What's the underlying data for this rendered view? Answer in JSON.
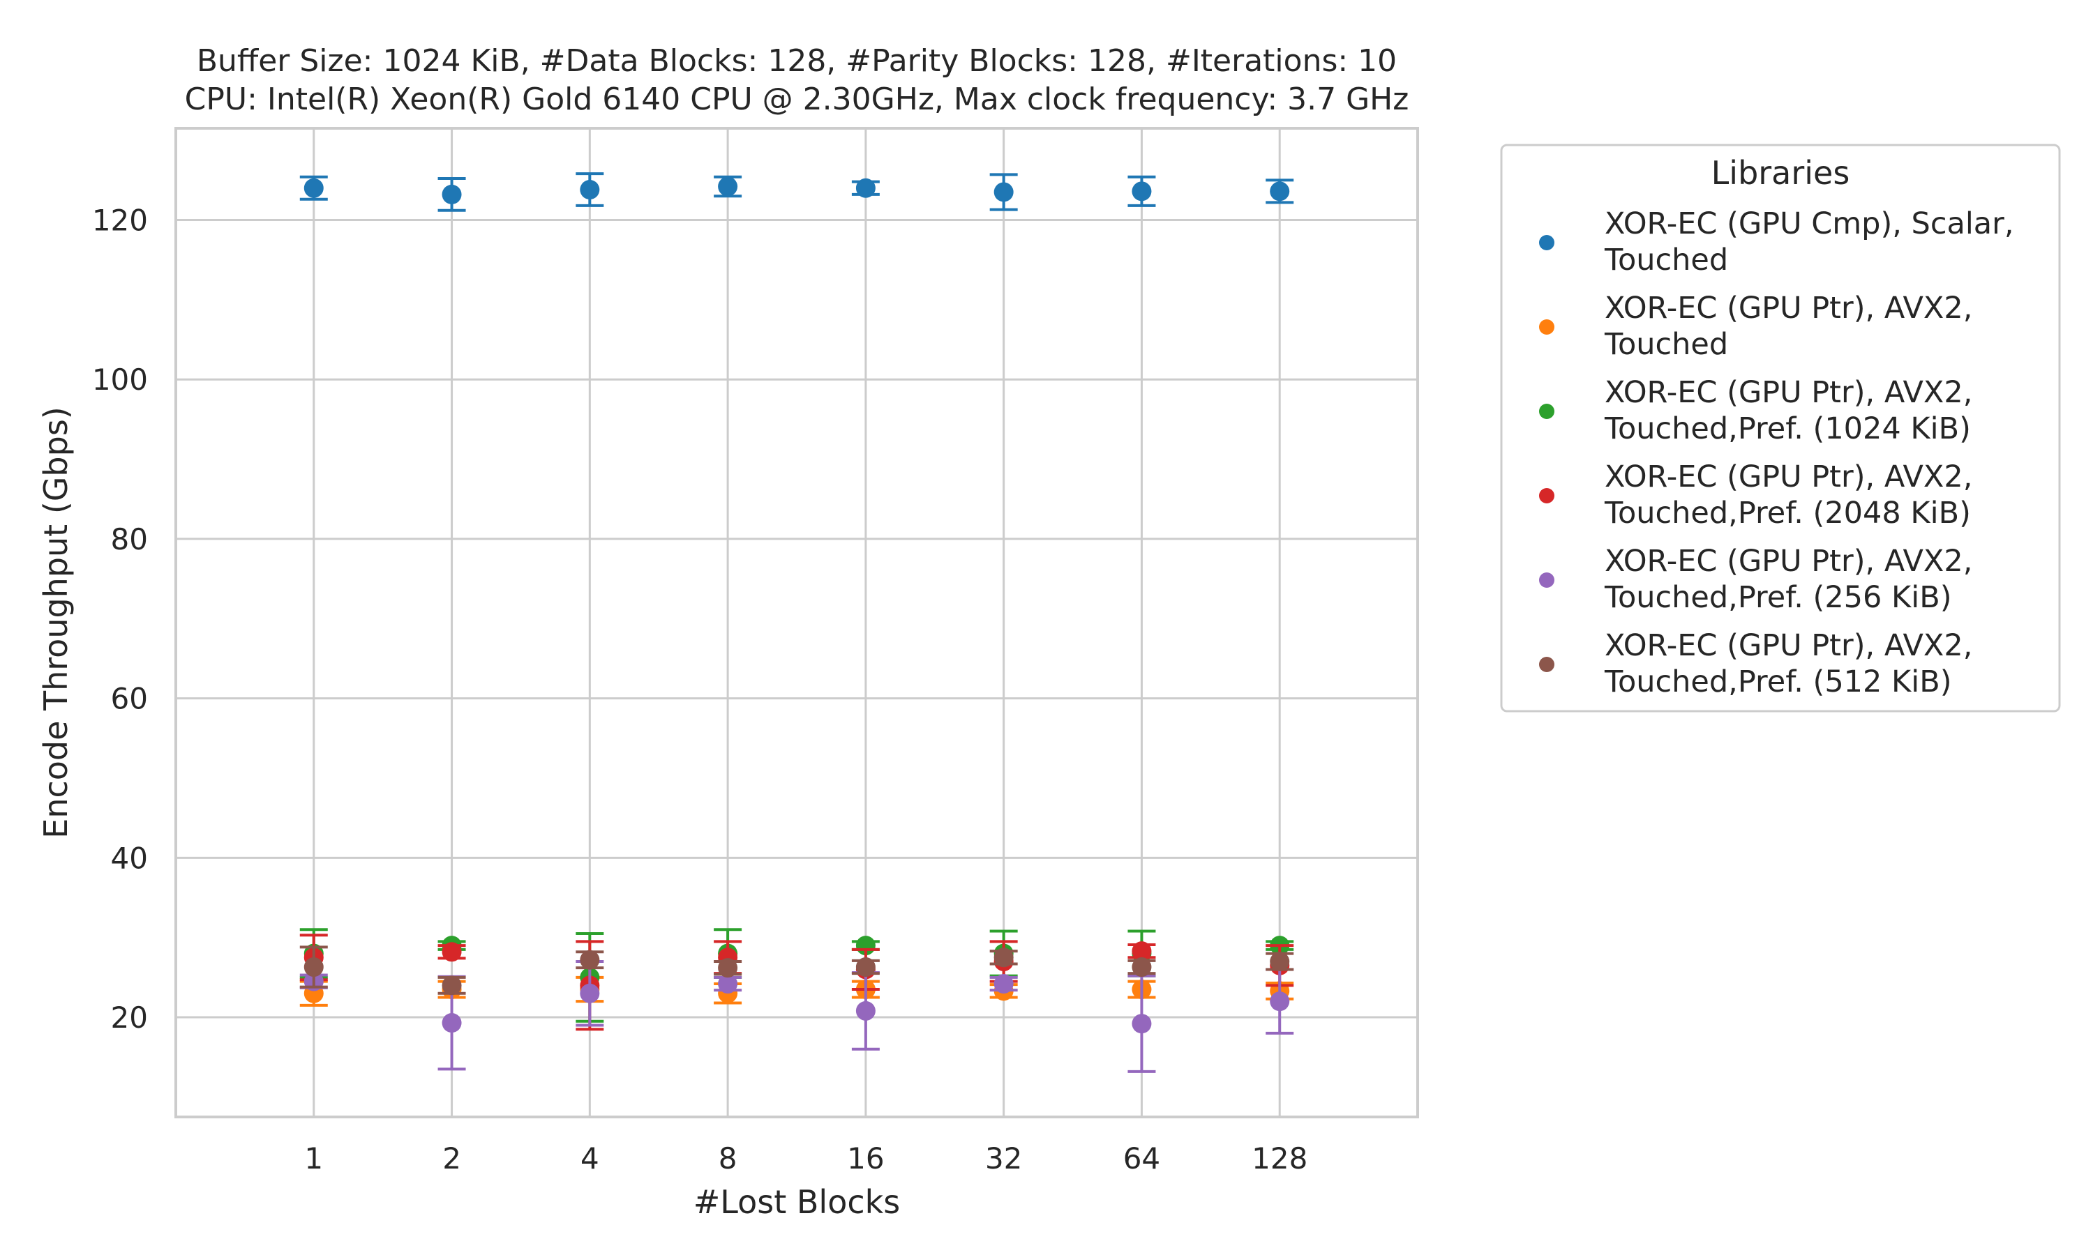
{
  "chart_data": {
    "type": "scatter",
    "title": [
      "Buffer Size: 1024 KiB, #Data Blocks: 128, #Parity Blocks: 128, #Iterations: 10",
      "CPU: Intel(R) Xeon(R) Gold 6140 CPU @ 2.30GHz, Max clock frequency: 3.7 GHz"
    ],
    "xlabel": "#Lost Blocks",
    "ylabel": "Encode Throughput (Gbps)",
    "categories": [
      "1",
      "2",
      "4",
      "8",
      "16",
      "32",
      "64",
      "128"
    ],
    "yticks": [
      20,
      40,
      60,
      80,
      100,
      120
    ],
    "ylim": [
      7.5,
      131.5
    ],
    "grid": true,
    "legend": {
      "title": "Libraries",
      "placement": "outside-right"
    },
    "series": [
      {
        "name": [
          "XOR-EC (GPU Cmp), Scalar,",
          "Touched"
        ],
        "color": "#1f77b4",
        "values": [
          124.0,
          123.2,
          123.8,
          124.2,
          124.0,
          123.5,
          123.6,
          123.6
        ],
        "err": [
          1.4,
          2.0,
          2.0,
          1.2,
          0.8,
          2.2,
          1.8,
          1.4
        ]
      },
      {
        "name": [
          "XOR-EC (GPU Ptr), AVX2,",
          "Touched"
        ],
        "color": "#ff7f0e",
        "values": [
          23.0,
          23.5,
          23.5,
          23.0,
          23.5,
          23.3,
          23.5,
          23.3
        ],
        "err": [
          1.5,
          1.0,
          1.5,
          1.2,
          1.0,
          0.8,
          1.0,
          1.0
        ]
      },
      {
        "name": [
          "XOR-EC (GPU Ptr), AVX2,",
          "Touched,Pref. (1024 KiB)"
        ],
        "color": "#2ca02c",
        "values": [
          28.0,
          29.0,
          25.0,
          28.0,
          29.0,
          28.0,
          28.0,
          29.0
        ],
        "err": [
          3.0,
          0.5,
          5.5,
          3.0,
          0.5,
          2.8,
          2.8,
          0.5
        ]
      },
      {
        "name": [
          "XOR-EC (GPU Ptr), AVX2,",
          "Touched,Pref. (2048 KiB)"
        ],
        "color": "#d62728",
        "values": [
          27.5,
          28.2,
          24.0,
          27.5,
          26.0,
          27.0,
          28.3,
          26.5
        ],
        "err": [
          2.8,
          0.8,
          5.5,
          2.0,
          2.5,
          2.5,
          0.8,
          2.5
        ]
      },
      {
        "name": [
          "XOR-EC (GPU Ptr), AVX2,",
          "Touched,Pref. (256 KiB)"
        ],
        "color": "#9467bd",
        "values": [
          24.5,
          19.3,
          23.0,
          24.2,
          20.8,
          24.2,
          19.2,
          22.0
        ],
        "err": [
          0.8,
          5.8,
          4.0,
          0.8,
          4.8,
          0.8,
          6.0,
          4.0
        ]
      },
      {
        "name": [
          "XOR-EC (GPU Ptr), AVX2,",
          "Touched,Pref. (512 KiB)"
        ],
        "color": "#8c564b",
        "values": [
          26.3,
          24.0,
          27.2,
          26.2,
          26.3,
          27.5,
          26.3,
          27.0
        ],
        "err": [
          2.5,
          1.0,
          1.0,
          0.8,
          0.8,
          0.8,
          0.8,
          1.0
        ]
      }
    ]
  }
}
